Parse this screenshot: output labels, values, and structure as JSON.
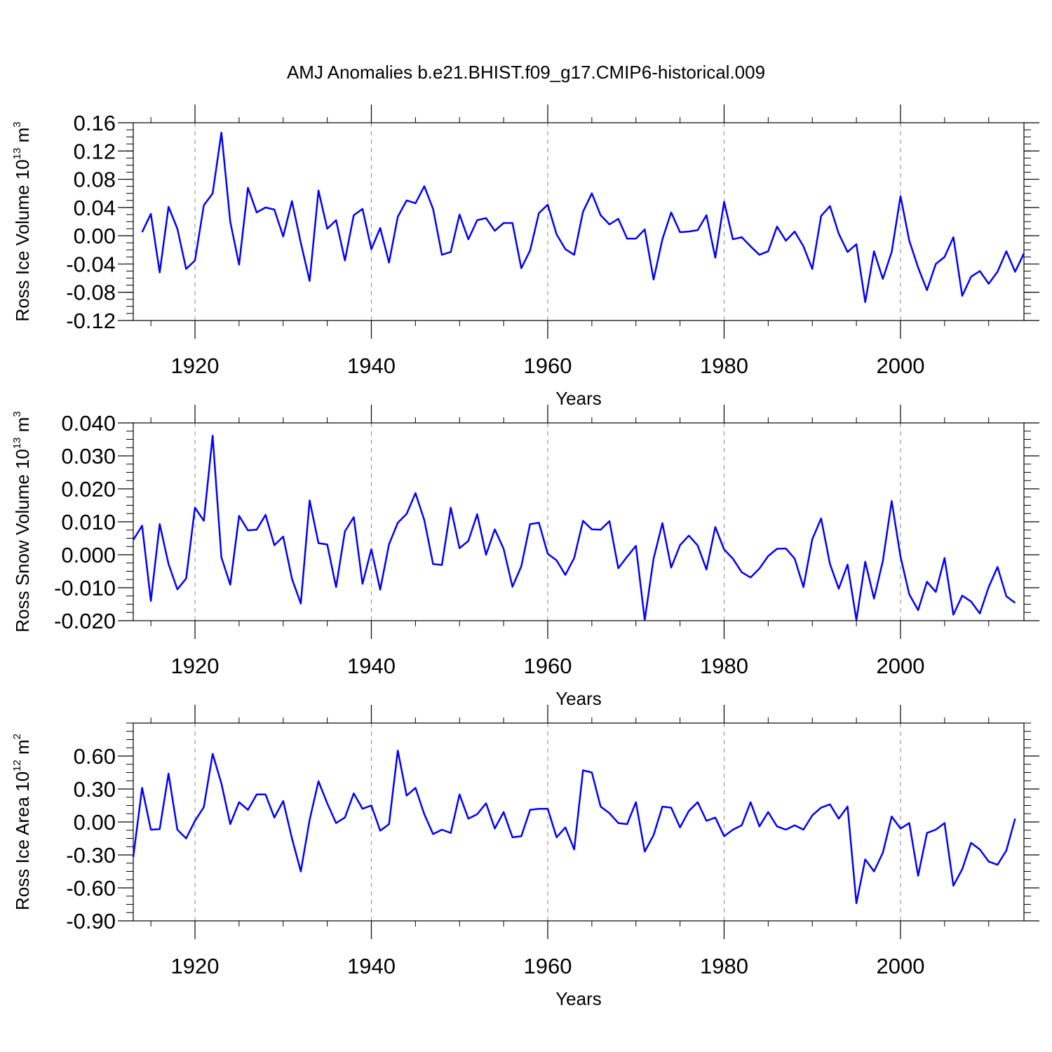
{
  "title": "AMJ Anomalies b.e21.BHIST.f09_g17.CMIP6-historical.009",
  "chart_data": [
    {
      "type": "line",
      "xlabel": "Years",
      "ylabel": {
        "text": "Ross Ice Volume 10",
        "exp": "13",
        "unit": " m",
        "unit_exp": "3"
      },
      "xlim": [
        1913,
        2014
      ],
      "ylim": [
        -0.12,
        0.16
      ],
      "y_ticks": [
        "0.16",
        "0.12",
        "0.08",
        "0.04",
        "0.00",
        "-0.04",
        "-0.08",
        "-0.12"
      ],
      "y_tick_values": [
        0.16,
        0.12,
        0.08,
        0.04,
        0.0,
        -0.04,
        -0.08,
        -0.12
      ],
      "x_ticks": [
        "1920",
        "1940",
        "1960",
        "1980",
        "2000"
      ],
      "x_tick_values": [
        1920,
        1940,
        1960,
        1980,
        2000
      ],
      "grid": "vertical dashed at labeled years",
      "line_color": "#0000ff",
      "x_start": 1914,
      "values": [
        0.005,
        0.031,
        -0.052,
        0.041,
        0.01,
        -0.047,
        -0.035,
        0.043,
        0.06,
        0.146,
        0.02,
        -0.041,
        0.068,
        0.033,
        0.04,
        0.037,
        -0.001,
        0.049,
        -0.01,
        -0.064,
        0.064,
        0.01,
        0.022,
        -0.035,
        0.029,
        0.038,
        -0.019,
        0.011,
        -0.038,
        0.027,
        0.05,
        0.046,
        0.07,
        0.038,
        -0.027,
        -0.023,
        0.03,
        -0.005,
        0.022,
        0.025,
        0.007,
        0.018,
        0.018,
        -0.046,
        -0.021,
        0.032,
        0.044,
        0.002,
        -0.019,
        -0.027,
        0.034,
        0.06,
        0.029,
        0.016,
        0.024,
        -0.004,
        -0.004,
        0.009,
        -0.062,
        -0.005,
        0.033,
        0.005,
        0.006,
        0.008,
        0.029,
        -0.031,
        0.048,
        -0.005,
        -0.002,
        -0.015,
        -0.027,
        -0.022,
        0.013,
        -0.007,
        0.006,
        -0.015,
        -0.047,
        0.028,
        0.042,
        0.003,
        -0.023,
        -0.012,
        -0.094,
        -0.022,
        -0.061,
        -0.023,
        0.056,
        -0.007,
        -0.045,
        -0.077,
        -0.04,
        -0.03,
        -0.002,
        -0.085,
        -0.058,
        -0.05,
        -0.068,
        -0.051,
        -0.022,
        -0.051,
        -0.025
      ]
    },
    {
      "type": "line",
      "xlabel": "Years",
      "ylabel": {
        "text": "Ross Snow Volume 10",
        "exp": "13",
        "unit": " m",
        "unit_exp": "3"
      },
      "xlim": [
        1913,
        2014
      ],
      "ylim": [
        -0.02,
        0.04
      ],
      "y_ticks": [
        "0.040",
        "0.030",
        "0.020",
        "0.010",
        "0.000",
        "-0.010",
        "-0.020"
      ],
      "y_tick_values": [
        0.04,
        0.03,
        0.02,
        0.01,
        0.0,
        -0.01,
        -0.02
      ],
      "x_ticks": [
        "1920",
        "1940",
        "1960",
        "1980",
        "2000"
      ],
      "x_tick_values": [
        1920,
        1940,
        1960,
        1980,
        2000
      ],
      "grid": "vertical dashed at labeled years",
      "line_color": "#0000ff",
      "x_start": 1913,
      "values": [
        0.0045,
        0.0088,
        -0.014,
        0.0093,
        -0.0028,
        -0.0105,
        -0.0072,
        0.0143,
        0.0103,
        0.0361,
        -0.0008,
        -0.0091,
        0.0118,
        0.0074,
        0.0076,
        0.0121,
        0.0029,
        0.0055,
        -0.0073,
        -0.0148,
        0.0165,
        0.0035,
        0.0031,
        -0.0098,
        0.0071,
        0.0114,
        -0.0088,
        0.0017,
        -0.0106,
        0.0032,
        0.0097,
        0.0124,
        0.0187,
        0.0105,
        -0.0028,
        -0.0031,
        0.0143,
        0.002,
        0.0042,
        0.0123,
        0.0,
        0.0077,
        0.0018,
        -0.0097,
        -0.0035,
        0.0093,
        0.0097,
        0.0003,
        -0.0017,
        -0.0061,
        -0.001,
        0.0103,
        0.0077,
        0.0076,
        0.0102,
        -0.0041,
        -0.0006,
        0.0027,
        -0.0198,
        -0.0012,
        0.0096,
        -0.0039,
        0.0029,
        0.0058,
        0.0028,
        -0.0045,
        0.0084,
        0.0016,
        -0.0012,
        -0.0053,
        -0.0069,
        -0.0042,
        -0.0004,
        0.0018,
        0.0019,
        -0.0012,
        -0.0098,
        0.0047,
        0.011,
        -0.0028,
        -0.0103,
        -0.003,
        -0.0198,
        -0.0021,
        -0.0133,
        -0.0019,
        0.0163,
        -0.0006,
        -0.012,
        -0.0168,
        -0.0082,
        -0.0113,
        -0.001,
        -0.0182,
        -0.0124,
        -0.0142,
        -0.0178,
        -0.0098,
        -0.0037,
        -0.0126,
        -0.0146
      ]
    },
    {
      "type": "line",
      "xlabel": "Years",
      "ylabel": {
        "text": "Ross Ice Area 10",
        "exp": "12",
        "unit": " m",
        "unit_exp": "2"
      },
      "xlim": [
        1913,
        2014
      ],
      "ylim": [
        -0.9,
        0.9
      ],
      "y_ticks": [
        "0.60",
        "0.30",
        "0.00",
        "-0.30",
        "-0.60",
        "-0.90"
      ],
      "y_tick_values": [
        0.6,
        0.3,
        0.0,
        -0.3,
        -0.6,
        -0.9
      ],
      "x_ticks": [
        "1920",
        "1940",
        "1960",
        "1980",
        "2000"
      ],
      "x_tick_values": [
        1920,
        1940,
        1960,
        1980,
        2000
      ],
      "grid": "vertical dashed at labeled years",
      "line_color": "#0000ff",
      "x_start": 1913,
      "values": [
        -0.32,
        0.31,
        -0.07,
        -0.065,
        0.44,
        -0.07,
        -0.15,
        0.01,
        0.135,
        0.62,
        0.35,
        -0.02,
        0.18,
        0.11,
        0.25,
        0.25,
        0.04,
        0.19,
        -0.15,
        -0.45,
        0.02,
        0.37,
        0.17,
        -0.01,
        0.04,
        0.26,
        0.12,
        0.15,
        -0.08,
        -0.02,
        0.65,
        0.24,
        0.31,
        0.07,
        -0.11,
        -0.07,
        -0.1,
        0.25,
        0.03,
        0.07,
        0.17,
        -0.06,
        0.09,
        -0.14,
        -0.13,
        0.11,
        0.12,
        0.12,
        -0.14,
        -0.05,
        -0.25,
        0.47,
        0.45,
        0.14,
        0.08,
        -0.01,
        -0.02,
        0.18,
        -0.27,
        -0.12,
        0.14,
        0.13,
        -0.05,
        0.1,
        0.18,
        0.01,
        0.04,
        -0.13,
        -0.07,
        -0.03,
        0.18,
        -0.04,
        0.09,
        -0.04,
        -0.07,
        -0.03,
        -0.07,
        0.06,
        0.13,
        0.16,
        0.03,
        0.14,
        -0.74,
        -0.34,
        -0.45,
        -0.28,
        0.05,
        -0.06,
        -0.01,
        -0.49,
        -0.1,
        -0.07,
        -0.01,
        -0.58,
        -0.43,
        -0.19,
        -0.25,
        -0.36,
        -0.39,
        -0.26,
        0.03
      ]
    }
  ]
}
